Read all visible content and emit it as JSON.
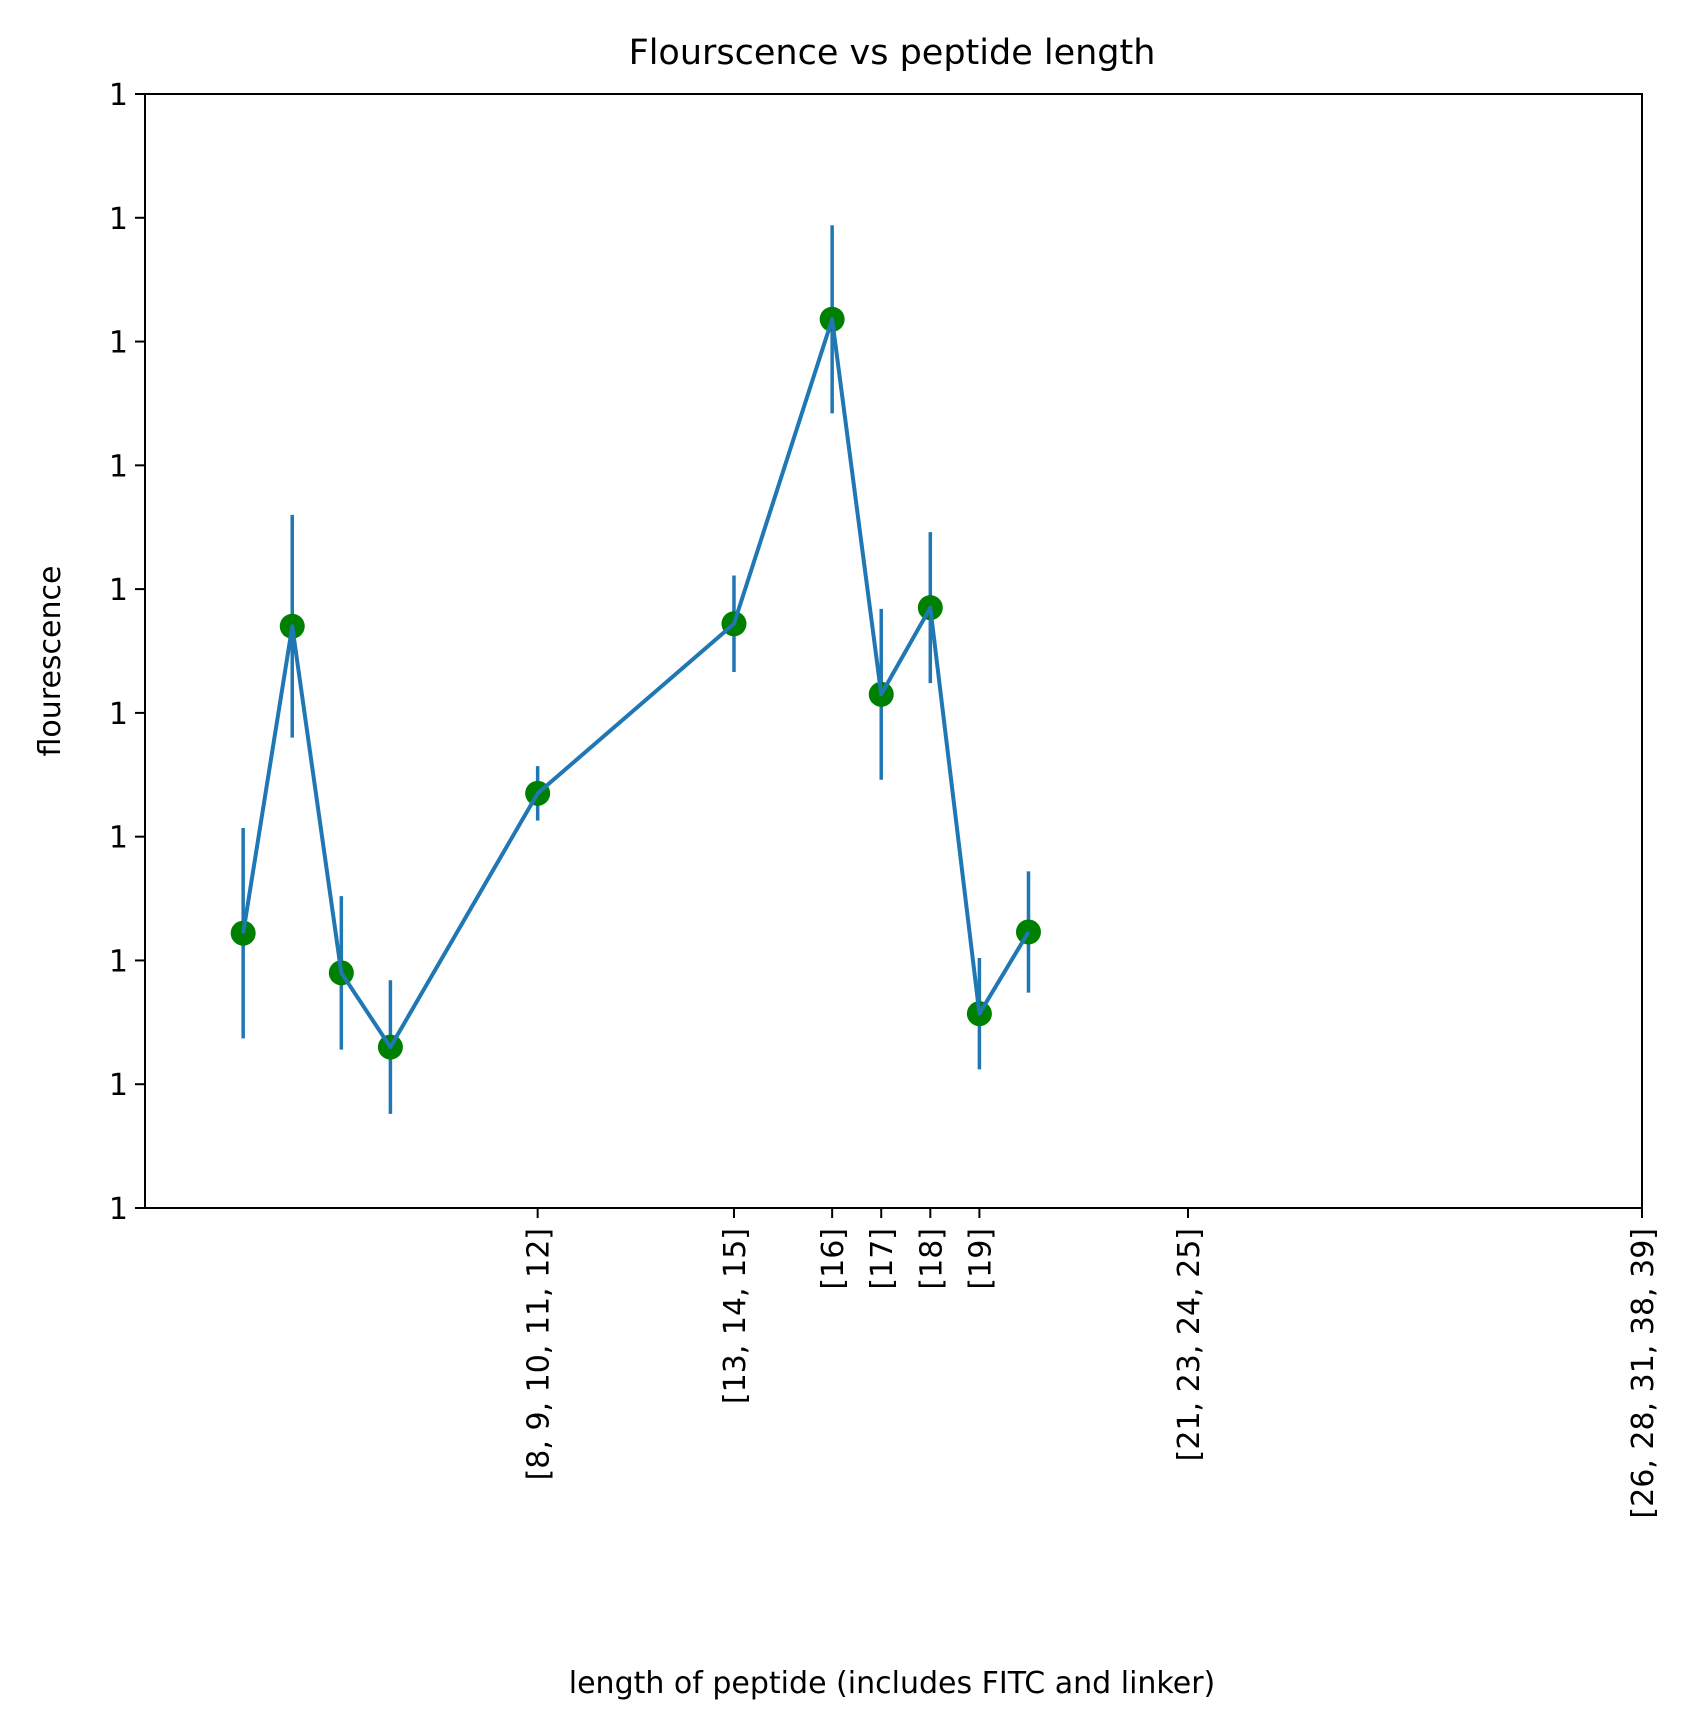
{
  "chart_data": {
    "type": "line",
    "title": "Flourscence vs peptide length",
    "xlabel": "length of peptide (includes FITC and linker)",
    "ylabel": "flourescence",
    "xlim": [
      6,
      36.5
    ],
    "ylim": [
      0,
      9
    ],
    "x_ticks": [
      {
        "value": 14,
        "label": "[8, 9, 10, 11, 12]"
      },
      {
        "value": 18,
        "label": "[13, 14, 15]"
      },
      {
        "value": 20,
        "label": "[16]"
      },
      {
        "value": 21,
        "label": "[17]"
      },
      {
        "value": 22,
        "label": "[18]"
      },
      {
        "value": 23,
        "label": "[19]"
      },
      {
        "value": 27.25,
        "label": "[21, 23, 24, 25]"
      },
      {
        "value": 36.5,
        "label": "[26, 28, 31, 38, 39]"
      }
    ],
    "y_ticks": [
      {
        "value": 0,
        "label": "1"
      },
      {
        "value": 1,
        "label": "1"
      },
      {
        "value": 2,
        "label": "1"
      },
      {
        "value": 3,
        "label": "1"
      },
      {
        "value": 4,
        "label": "1"
      },
      {
        "value": 5,
        "label": "1"
      },
      {
        "value": 6,
        "label": "1"
      },
      {
        "value": 7,
        "label": "1"
      },
      {
        "value": 8,
        "label": "1"
      },
      {
        "value": 9,
        "label": "1"
      }
    ],
    "series": [
      {
        "x": [
          8,
          9,
          10,
          11,
          14,
          18,
          20,
          21,
          22,
          23,
          24
        ],
        "y": [
          2.22,
          4.7,
          1.9,
          1.3,
          3.35,
          4.72,
          7.18,
          4.15,
          4.85,
          1.57,
          2.23
        ],
        "yerr": [
          0.85,
          0.9,
          0.62,
          0.54,
          0.22,
          0.39,
          0.76,
          0.69,
          0.61,
          0.45,
          0.49
        ],
        "line_color": "#1f77b4",
        "marker_color": "#008000"
      }
    ],
    "grid": false,
    "legend": "none"
  }
}
